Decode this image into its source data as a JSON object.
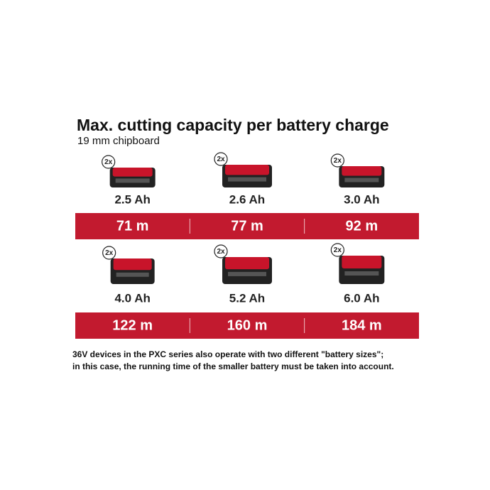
{
  "header": {
    "title": "Max. cutting capacity per battery charge",
    "subtitle": "19 mm chipboard"
  },
  "rows": [
    {
      "batteries": [
        {
          "badge": "2x",
          "capacity": "2.5 Ah",
          "distance": "71 m"
        },
        {
          "badge": "2x",
          "capacity": "2.6 Ah",
          "distance": "77 m"
        },
        {
          "badge": "2x",
          "capacity": "3.0 Ah",
          "distance": "92 m"
        }
      ]
    },
    {
      "batteries": [
        {
          "badge": "2x",
          "capacity": "4.0 Ah",
          "distance": "122 m"
        },
        {
          "badge": "2x",
          "capacity": "5.2 Ah",
          "distance": "160 m"
        },
        {
          "badge": "2x",
          "capacity": "6.0 Ah",
          "distance": "184 m"
        }
      ]
    }
  ],
  "footnote": [
    "36V devices in the PXC series also operate with two different \"battery sizes\";",
    "in this case, the running time of the smaller battery must be taken into account."
  ]
}
